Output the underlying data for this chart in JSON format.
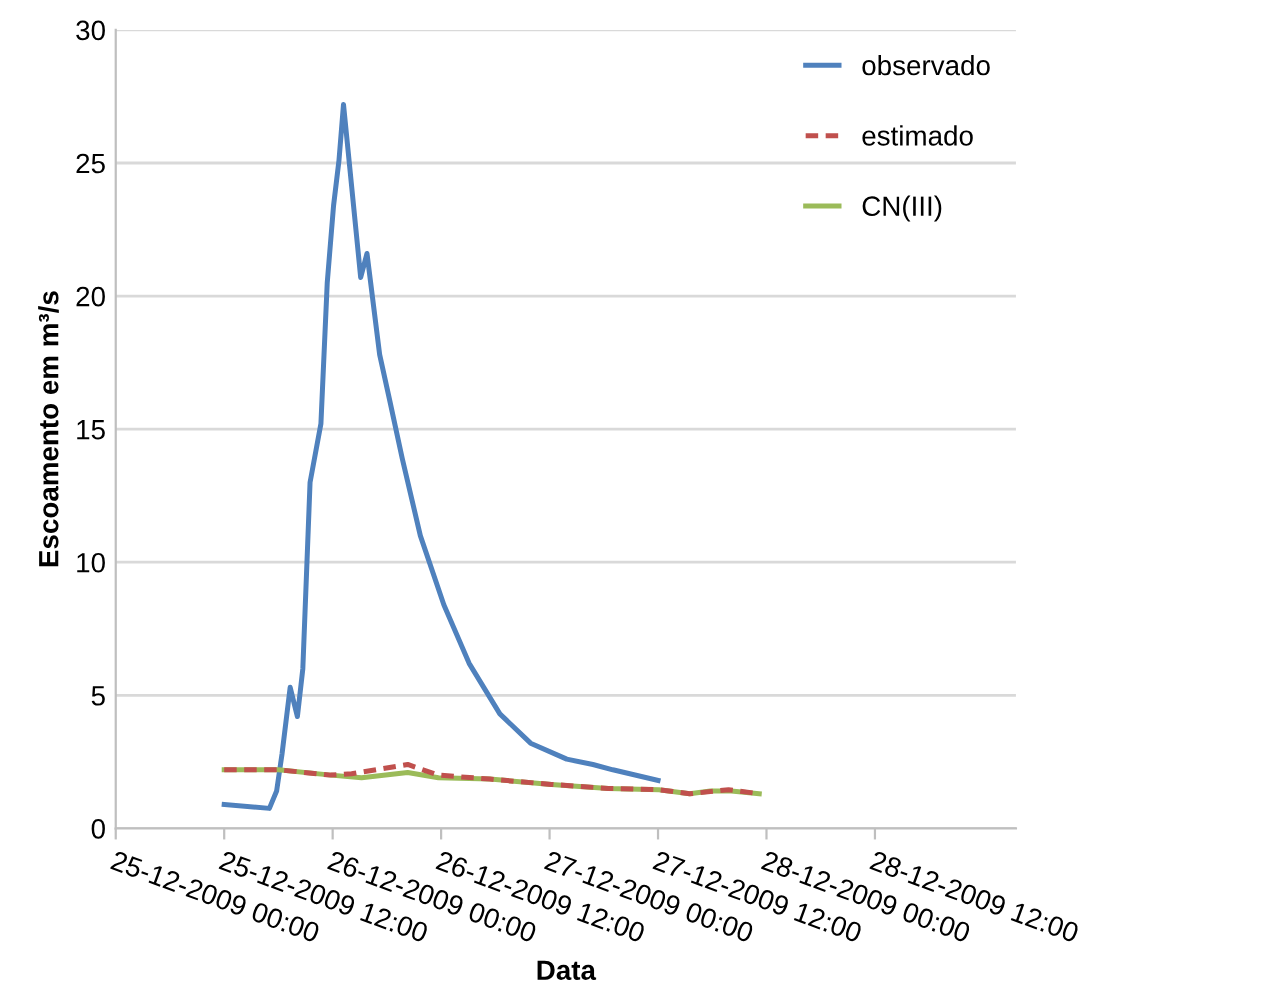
{
  "chart_data": {
    "type": "line",
    "xlabel": "Data",
    "ylabel": "Escoamento em m³/s",
    "xlim": [
      "2009-12-25T00:00",
      "2009-12-29T03:36"
    ],
    "ylim": [
      0,
      30
    ],
    "yticks": [
      0,
      5,
      10,
      15,
      20,
      25,
      30
    ],
    "xticks": [
      {
        "value": "2009-12-25T00:00",
        "label": "25-12-2009 00:00"
      },
      {
        "value": "2009-12-25T12:00",
        "label": "25-12-2009 12:00"
      },
      {
        "value": "2009-12-26T00:00",
        "label": "26-12-2009 00:00"
      },
      {
        "value": "2009-12-26T12:00",
        "label": "26-12-2009 12:00"
      },
      {
        "value": "2009-12-27T00:00",
        "label": "27-12-2009 00:00"
      },
      {
        "value": "2009-12-27T12:00",
        "label": "27-12-2009 12:00"
      },
      {
        "value": "2009-12-28T00:00",
        "label": "28-12-2009 00:00"
      },
      {
        "value": "2009-12-28T12:00",
        "label": "28-12-2009 12:00"
      }
    ],
    "grid": "y",
    "legend": "top right",
    "marker": "none",
    "series": [
      {
        "name": "observado",
        "color": "#4f81bd",
        "line_style": "solid",
        "x": [
          "2009-12-25T12:00",
          "2009-12-25T17:00",
          "2009-12-25T17:48",
          "2009-12-25T18:24",
          "2009-12-25T19:18",
          "2009-12-25T20:06",
          "2009-12-25T20:42",
          "2009-12-25T21:30",
          "2009-12-25T22:42",
          "2009-12-25T23:24",
          "2009-12-26T00:06",
          "2009-12-26T00:42",
          "2009-12-26T01:12",
          "2009-12-26T03:06",
          "2009-12-26T03:48",
          "2009-12-26T05:12",
          "2009-12-26T06:18",
          "2009-12-26T07:42",
          "2009-12-26T09:42",
          "2009-12-26T12:18",
          "2009-12-26T15:06",
          "2009-12-26T18:30",
          "2009-12-26T21:54",
          "2009-12-27T01:54",
          "2009-12-27T04:48",
          "2009-12-27T07:00",
          "2009-12-27T12:00"
        ],
        "values": [
          0.9,
          0.75,
          1.4,
          2.8,
          5.3,
          4.2,
          6.0,
          13.0,
          15.2,
          20.5,
          23.4,
          25.1,
          27.2,
          20.7,
          21.6,
          17.8,
          16.1,
          13.9,
          11.0,
          8.4,
          6.2,
          4.3,
          3.2,
          2.6,
          2.4,
          2.2,
          1.8
        ]
      },
      {
        "name": "estimado",
        "color": "#c0504d",
        "line_style": "dashed",
        "x": [
          "2009-12-25T12:00",
          "2009-12-25T18:00",
          "2009-12-25T23:48",
          "2009-12-26T02:06",
          "2009-12-26T08:18",
          "2009-12-26T11:42",
          "2009-12-26T17:24",
          "2009-12-27T00:12",
          "2009-12-27T06:30",
          "2009-12-27T12:06",
          "2009-12-27T15:30",
          "2009-12-27T19:48",
          "2009-12-27T23:12"
        ],
        "values": [
          2.2,
          2.2,
          2.0,
          2.05,
          2.4,
          2.0,
          1.85,
          1.65,
          1.5,
          1.45,
          1.3,
          1.45,
          1.3
        ]
      },
      {
        "name": "CN(III)",
        "color": "#9bbb59",
        "line_style": "solid",
        "x": [
          "2009-12-25T12:00",
          "2009-12-25T18:00",
          "2009-12-25T23:48",
          "2009-12-26T03:12",
          "2009-12-26T08:18",
          "2009-12-26T11:42",
          "2009-12-26T17:24",
          "2009-12-27T00:12",
          "2009-12-27T06:30",
          "2009-12-27T12:06",
          "2009-12-27T15:30",
          "2009-12-27T17:48",
          "2009-12-27T20:06",
          "2009-12-27T23:12"
        ],
        "values": [
          2.2,
          2.2,
          2.0,
          1.9,
          2.1,
          1.9,
          1.85,
          1.65,
          1.5,
          1.45,
          1.3,
          1.4,
          1.4,
          1.3
        ]
      }
    ]
  }
}
